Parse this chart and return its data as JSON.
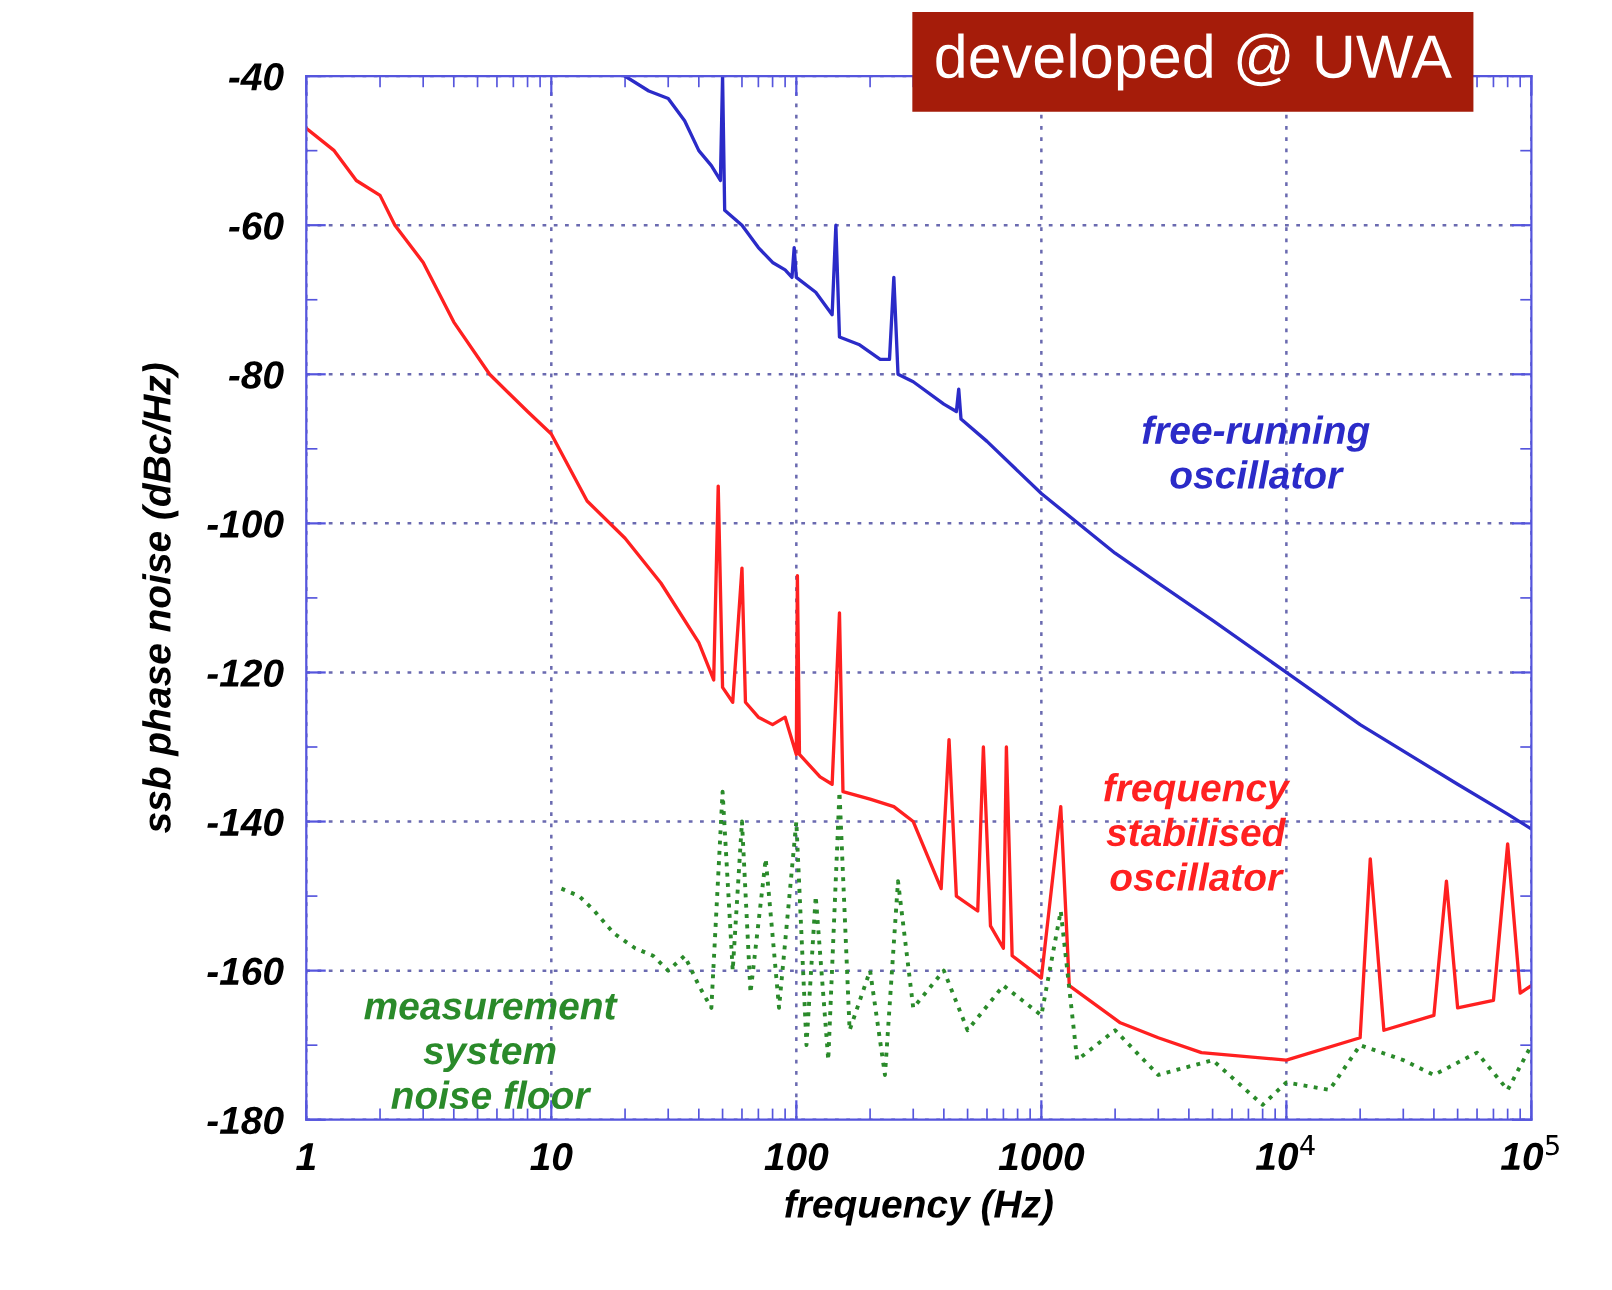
{
  "chart_data": {
    "type": "line",
    "xlabel": "frequency (Hz)",
    "ylabel": "ssb phase noise (dBc/Hz)",
    "log": "x",
    "grid": true,
    "xlim": [
      1,
      100000
    ],
    "ylim": [
      -180,
      -40
    ],
    "xticks": [
      1,
      10,
      100,
      1000,
      {
        "value": 10000,
        "label": "10$^{4}$"
      },
      {
        "value": 100000,
        "label": "10$^{5}$"
      }
    ],
    "yticks": [
      -180,
      -160,
      -140,
      -120,
      -100,
      -80,
      -60,
      -40
    ],
    "annotations": [
      "developed @ UWA"
    ],
    "series": [
      {
        "name": "free-running\noscillator",
        "color": "#2b2bc8",
        "line_style": "solid",
        "x": [
          20,
          25,
          30,
          35,
          40,
          45,
          49,
          50,
          51,
          60,
          70,
          80,
          90,
          96,
          98,
          100,
          120,
          140,
          145,
          150,
          180,
          220,
          240,
          250,
          260,
          300,
          400,
          450,
          460,
          470,
          600,
          1000,
          2000,
          3000,
          5000,
          10000,
          20000,
          50000,
          80000,
          100000
        ],
        "values": [
          -40,
          -42,
          -43,
          -46,
          -50,
          -52,
          -54,
          -40,
          -58,
          -60,
          -63,
          -65,
          -66,
          -67,
          -63,
          -67,
          -69,
          -72,
          -60,
          -75,
          -76,
          -78,
          -78,
          -67,
          -80,
          -81,
          -84,
          -85,
          -82,
          -86,
          -89,
          -96,
          -104,
          -108,
          -113,
          -120,
          -127,
          -135,
          -139,
          -141
        ]
      },
      {
        "name": "frequency\nstabilised\noscillator",
        "color": "#ff2020",
        "line_style": "solid",
        "x": [
          1,
          1.3,
          1.6,
          2,
          2.3,
          3,
          4,
          5.6,
          8,
          10,
          14,
          20,
          28,
          40,
          46,
          48,
          50,
          55,
          60,
          62,
          70,
          80,
          90,
          100,
          101,
          103,
          125,
          140,
          150,
          155,
          200,
          250,
          300,
          390,
          420,
          450,
          550,
          580,
          620,
          700,
          720,
          760,
          1000,
          1200,
          1300,
          2100,
          3000,
          4500,
          10000,
          20000,
          22000,
          25000,
          40000,
          45000,
          50000,
          70000,
          80000,
          90000,
          100000
        ],
        "values": [
          -47,
          -50,
          -54,
          -56,
          -60,
          -65,
          -73,
          -80,
          -85,
          -88,
          -97,
          -102,
          -108,
          -116,
          -121,
          -95,
          -122,
          -124,
          -106,
          -124,
          -126,
          -127,
          -126,
          -131,
          -107,
          -131,
          -134,
          -135,
          -112,
          -136,
          -137,
          -138,
          -140,
          -149,
          -129,
          -150,
          -152,
          -130,
          -154,
          -157,
          -130,
          -158,
          -161,
          -138,
          -162,
          -167,
          -169,
          -171,
          -172,
          -169,
          -145,
          -168,
          -166,
          -148,
          -165,
          -164,
          -143,
          -163,
          -162
        ]
      },
      {
        "name": "measurement\nsystem\nnoise floor",
        "color": "#2a8a2a",
        "line_style": "dotted",
        "x": [
          11,
          13,
          15,
          18,
          22,
          26,
          30,
          35,
          40,
          45,
          50,
          55,
          60,
          65,
          75,
          85,
          100,
          110,
          120,
          135,
          150,
          165,
          200,
          230,
          260,
          300,
          400,
          500,
          700,
          1000,
          1200,
          1400,
          2000,
          3000,
          5000,
          8000,
          10000,
          15000,
          20000,
          30000,
          40000,
          60000,
          80000,
          100000
        ],
        "values": [
          -149,
          -150,
          -152,
          -155,
          -157,
          -158,
          -160,
          -158,
          -162,
          -165,
          -136,
          -160,
          -140,
          -163,
          -145,
          -165,
          -140,
          -170,
          -150,
          -172,
          -136,
          -168,
          -160,
          -174,
          -148,
          -165,
          -160,
          -168,
          -162,
          -166,
          -152,
          -172,
          -168,
          -174,
          -172,
          -178,
          -175,
          -176,
          -170,
          -172,
          -174,
          -171,
          -176,
          -170
        ]
      }
    ]
  }
}
